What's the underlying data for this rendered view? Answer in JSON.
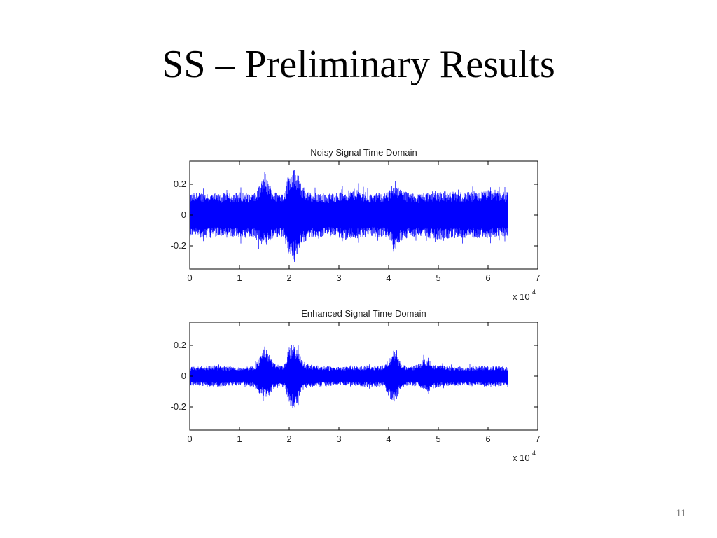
{
  "slide": {
    "title": "SS – Preliminary Results",
    "page_number": "11"
  },
  "colors": {
    "signal": "#0000ff",
    "axes": "#000000",
    "background": "#ffffff"
  },
  "chart_data": [
    {
      "type": "area",
      "title": "Noisy Signal Time Domain",
      "xlabel": "",
      "ylabel": "",
      "x_exponent_label": "x 10",
      "x_exponent": "4",
      "xlim": [
        0,
        7
      ],
      "ylim": [
        -0.35,
        0.35
      ],
      "xticks": [
        "0",
        "1",
        "2",
        "3",
        "4",
        "5",
        "6",
        "7"
      ],
      "xtick_values": [
        0,
        1,
        2,
        3,
        4,
        5,
        6,
        7
      ],
      "yticks": [
        "0.2",
        "0",
        "-0.2"
      ],
      "ytick_values": [
        0.2,
        0,
        -0.2
      ],
      "signal_end": 6.4,
      "envelope": {
        "x": [
          0,
          0.3,
          0.6,
          1.0,
          1.3,
          1.45,
          1.5,
          1.55,
          1.7,
          1.9,
          2.0,
          2.1,
          2.2,
          2.4,
          2.8,
          3.2,
          3.4,
          3.6,
          4.0,
          4.1,
          4.15,
          4.2,
          4.4,
          4.6,
          4.7,
          4.8,
          5.0,
          5.4,
          5.8,
          6.1,
          6.4
        ],
        "upper": [
          0.14,
          0.15,
          0.14,
          0.15,
          0.14,
          0.22,
          0.3,
          0.24,
          0.15,
          0.15,
          0.29,
          0.31,
          0.22,
          0.15,
          0.14,
          0.16,
          0.18,
          0.14,
          0.15,
          0.22,
          0.24,
          0.18,
          0.15,
          0.14,
          0.15,
          0.15,
          0.16,
          0.15,
          0.15,
          0.17,
          0.15
        ],
        "lower": [
          -0.14,
          -0.15,
          -0.14,
          -0.15,
          -0.15,
          -0.2,
          -0.2,
          -0.2,
          -0.15,
          -0.15,
          -0.27,
          -0.31,
          -0.22,
          -0.15,
          -0.14,
          -0.16,
          -0.15,
          -0.14,
          -0.15,
          -0.24,
          -0.25,
          -0.18,
          -0.15,
          -0.14,
          -0.15,
          -0.15,
          -0.16,
          -0.15,
          -0.15,
          -0.15,
          -0.14
        ]
      }
    },
    {
      "type": "area",
      "title": "Enhanced Signal Time Domain",
      "xlabel": "",
      "ylabel": "",
      "x_exponent_label": "x 10",
      "x_exponent": "4",
      "xlim": [
        0,
        7
      ],
      "ylim": [
        -0.35,
        0.35
      ],
      "xticks": [
        "0",
        "1",
        "2",
        "3",
        "4",
        "5",
        "6",
        "7"
      ],
      "xtick_values": [
        0,
        1,
        2,
        3,
        4,
        5,
        6,
        7
      ],
      "yticks": [
        "0.2",
        "0",
        "-0.2"
      ],
      "ytick_values": [
        0.2,
        0,
        -0.2
      ],
      "signal_end": 6.4,
      "envelope": {
        "x": [
          0,
          0.5,
          1.0,
          1.3,
          1.4,
          1.5,
          1.6,
          1.7,
          1.9,
          2.0,
          2.1,
          2.2,
          2.3,
          2.6,
          3.0,
          3.5,
          3.9,
          4.0,
          4.1,
          4.15,
          4.25,
          4.4,
          4.6,
          4.7,
          4.8,
          4.9,
          5.1,
          5.5,
          6.0,
          6.4
        ],
        "upper": [
          0.06,
          0.07,
          0.06,
          0.07,
          0.12,
          0.2,
          0.14,
          0.08,
          0.07,
          0.19,
          0.22,
          0.15,
          0.08,
          0.07,
          0.06,
          0.07,
          0.07,
          0.11,
          0.18,
          0.17,
          0.08,
          0.06,
          0.08,
          0.11,
          0.12,
          0.08,
          0.07,
          0.06,
          0.07,
          0.06
        ],
        "lower": [
          -0.06,
          -0.07,
          -0.06,
          -0.07,
          -0.12,
          -0.14,
          -0.12,
          -0.08,
          -0.07,
          -0.18,
          -0.22,
          -0.15,
          -0.08,
          -0.07,
          -0.06,
          -0.07,
          -0.07,
          -0.13,
          -0.18,
          -0.16,
          -0.08,
          -0.06,
          -0.07,
          -0.09,
          -0.1,
          -0.08,
          -0.07,
          -0.06,
          -0.07,
          -0.06
        ]
      }
    }
  ]
}
